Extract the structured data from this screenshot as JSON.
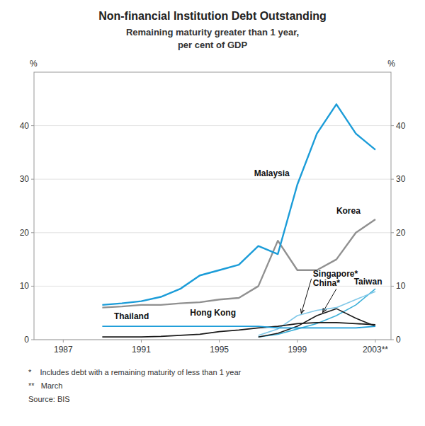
{
  "chart_data": {
    "type": "line",
    "title": "Non-financial Institution Debt Outstanding",
    "subtitle": [
      "Remaining maturity greater than 1 year,",
      "per cent of GDP"
    ],
    "ylabel": "%",
    "y2label": "%",
    "footnotes": [
      "*    Includes debt with a remaining maturity of less than 1 year",
      "**   March",
      "Source: BIS"
    ],
    "xlim": [
      1985.5,
      2003.8
    ],
    "xticks": [
      1987,
      1991,
      1995,
      1999,
      {
        "value": 2003,
        "label": "2003**"
      }
    ],
    "ylim": [
      0,
      50
    ],
    "yticks": [
      0,
      10,
      20,
      30,
      40
    ],
    "y2lim": [
      0,
      50
    ],
    "y2ticks": [
      0,
      10,
      20,
      30,
      40
    ],
    "grid": true,
    "series": [
      {
        "name": "Malaysia",
        "color": "#1b9cd8",
        "x": [
          1989,
          1990,
          1991,
          1992,
          1993,
          1994,
          1995,
          1996,
          1997,
          1998,
          1999,
          2000,
          2001,
          2002,
          2003
        ],
        "values": [
          6.5,
          6.8,
          7.2,
          8.0,
          9.5,
          12.0,
          13.0,
          14.0,
          17.5,
          16.0,
          29.0,
          38.5,
          44.0,
          38.5,
          35.5
        ]
      },
      {
        "name": "Korea",
        "color": "#909090",
        "x": [
          1989,
          1990,
          1991,
          1992,
          1993,
          1994,
          1995,
          1996,
          1997,
          1998,
          1999,
          2000,
          2001,
          2002,
          2003
        ],
        "values": [
          6.0,
          6.2,
          6.5,
          6.5,
          6.8,
          7.0,
          7.5,
          7.8,
          10.0,
          18.5,
          13.0,
          13.0,
          15.0,
          20.0,
          22.5
        ]
      },
      {
        "name": "Thailand",
        "color": "#1b9cd8",
        "x": [
          1989,
          1990,
          1991,
          1992,
          1993,
          1994,
          1995,
          1996,
          1997,
          1998,
          1999,
          2000,
          2001,
          2002,
          2003
        ],
        "values": [
          2.5,
          2.5,
          2.5,
          2.5,
          2.5,
          2.5,
          2.5,
          2.5,
          2.5,
          2.2,
          2.2,
          2.2,
          2.2,
          2.2,
          2.5
        ]
      },
      {
        "name": "Hong Kong",
        "color": "#1a1a1a",
        "x": [
          1989,
          1990,
          1991,
          1992,
          1993,
          1994,
          1995,
          1996,
          1997,
          1998,
          1999,
          2000,
          2001,
          2002,
          2003
        ],
        "values": [
          0.5,
          0.5,
          0.5,
          0.6,
          0.8,
          1.0,
          1.5,
          1.8,
          2.2,
          2.5,
          3.0,
          3.2,
          3.2,
          3.0,
          2.8
        ]
      },
      {
        "name": "Singapore*",
        "color": "#80c8e8",
        "x": [
          1997,
          1998,
          1999,
          2000,
          2001,
          2002,
          2003
        ],
        "values": [
          0.8,
          2.0,
          4.5,
          5.5,
          6.0,
          7.5,
          9.0
        ]
      },
      {
        "name": "China*",
        "color": "#1a1a1a",
        "x": [
          1997,
          1998,
          1999,
          2000,
          2001,
          2002,
          2003
        ],
        "values": [
          0.5,
          1.2,
          2.5,
          4.5,
          5.8,
          4.0,
          2.5
        ]
      },
      {
        "name": "Taiwan",
        "color": "#3db0d8",
        "x": [
          1997,
          1998,
          1999,
          2000,
          2001,
          2002,
          2003
        ],
        "values": [
          0.5,
          1.0,
          2.0,
          3.0,
          4.5,
          6.5,
          9.5
        ]
      }
    ]
  }
}
